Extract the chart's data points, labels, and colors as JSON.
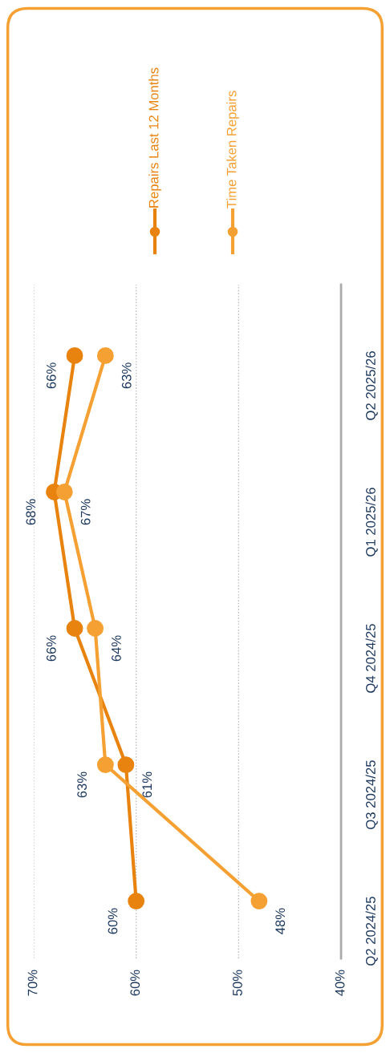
{
  "chart_data": {
    "type": "line",
    "orientation": "horizontal",
    "categories": [
      "Q2 2025/26",
      "Q1 2025/26",
      "Q4 2024/25",
      "Q3 2024/25",
      "Q2 2024/25"
    ],
    "series": [
      {
        "name": "Repairs Last 12 Months",
        "color": "#e8830f",
        "values": [
          66,
          68,
          66,
          61,
          60
        ],
        "value_labels": [
          "66%",
          "68%",
          "66%",
          "61%",
          "60%"
        ]
      },
      {
        "name": "Time Taken Repairs",
        "color": "#f5a033",
        "values": [
          63,
          67,
          64,
          63,
          48
        ],
        "value_labels": [
          "63%",
          "67%",
          "64%",
          "63%",
          "48%"
        ]
      }
    ],
    "xlim": [
      70,
      40
    ],
    "xticks": [
      {
        "value": 70,
        "label": "70%"
      },
      {
        "value": 60,
        "label": "60%"
      },
      {
        "value": 50,
        "label": "50%"
      },
      {
        "value": 40,
        "label": "40%"
      }
    ],
    "grid": "x",
    "legend": "right",
    "marker": "circle",
    "line_style": "solid"
  }
}
